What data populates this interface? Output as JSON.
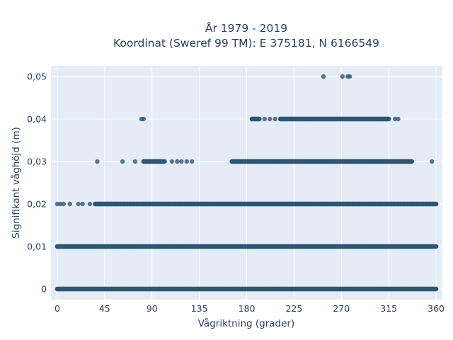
{
  "chart_data": {
    "type": "scatter",
    "title_lines": [
      "År 1979 - 2019",
      "Koordinat (Sweref 99 TM): E 375181, N 6166549"
    ],
    "xlabel": "Vågriktning (grader)",
    "ylabel": "Signifikant våghöjd (m)",
    "xlim": [
      -6,
      366
    ],
    "ylim": [
      -0.0025,
      0.0525
    ],
    "x_ticks": [
      0,
      45,
      90,
      135,
      180,
      225,
      270,
      315,
      360
    ],
    "x_tick_labels": [
      "0",
      "45",
      "90",
      "135",
      "180",
      "225",
      "270",
      "315",
      "360"
    ],
    "y_ticks": [
      0,
      0.01,
      0.02,
      0.03,
      0.04,
      0.05
    ],
    "y_tick_labels": [
      "0",
      "0,01",
      "0,02",
      "0,03",
      "0,04",
      "0,05"
    ],
    "grid": true,
    "legend": "none",
    "colors": {
      "marker": "#2e5670",
      "plot_bg": "#e5ecf6",
      "grid": "#ffffff"
    },
    "series": [
      {
        "bands": [
          {
            "y": 0.0,
            "x_ranges": [
              [
                0,
                360
              ]
            ],
            "isolated_x": []
          },
          {
            "y": 0.01,
            "x_ranges": [
              [
                0,
                360
              ]
            ],
            "isolated_x": []
          },
          {
            "y": 0.02,
            "x_ranges": [
              [
                36,
                360
              ]
            ],
            "isolated_x": [
              0,
              3,
              6,
              12,
              20,
              24,
              31
            ]
          },
          {
            "y": 0.03,
            "x_ranges": [
              [
                82,
                102
              ],
              [
                166,
                337
              ]
            ],
            "isolated_x": [
              38,
              62,
              74,
              109,
              114,
              118,
              123,
              128,
              356
            ]
          },
          {
            "y": 0.04,
            "x_ranges": [
              [
                185,
                192
              ],
              [
                212,
                315
              ]
            ],
            "isolated_x": [
              80,
              82,
              197,
              202,
              207,
              321,
              324
            ]
          },
          {
            "y": 0.05,
            "x_ranges": [],
            "isolated_x": [
              253,
              271,
              276,
              278
            ]
          }
        ]
      }
    ]
  }
}
